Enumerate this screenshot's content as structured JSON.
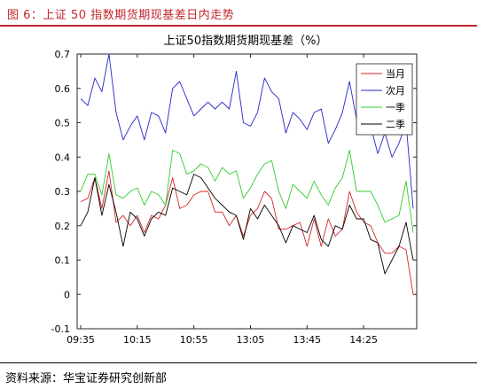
{
  "header": {
    "figure_title": "图 6：上证 50 指数期货期现基差日内走势"
  },
  "footer": {
    "source": "资料来源：华宝证券研究创新部"
  },
  "chart_data": {
    "type": "line",
    "title": "上证50指数期货期现基差（%）",
    "xlabel": "",
    "ylabel": "",
    "ylim": [
      -0.1,
      0.7
    ],
    "yticks": [
      -0.1,
      0,
      0.1,
      0.2,
      0.3,
      0.4,
      0.5,
      0.6,
      0.7
    ],
    "x_tick_labels": [
      "09:35",
      "10:15",
      "10:55",
      "13:05",
      "13:45",
      "14:25"
    ],
    "x_tick_index": [
      0,
      8,
      16,
      24,
      32,
      40
    ],
    "grid": false,
    "legend_position": "top-right",
    "series": [
      {
        "name": "当月",
        "color": "#d62728",
        "values": [
          0.27,
          0.28,
          0.34,
          0.25,
          0.36,
          0.21,
          0.23,
          0.2,
          0.23,
          0.18,
          0.23,
          0.22,
          0.26,
          0.34,
          0.25,
          0.26,
          0.29,
          0.3,
          0.3,
          0.24,
          0.24,
          0.2,
          0.23,
          0.17,
          0.23,
          0.25,
          0.3,
          0.28,
          0.19,
          0.19,
          0.2,
          0.21,
          0.14,
          0.22,
          0.14,
          0.22,
          0.17,
          0.19,
          0.3,
          0.24,
          0.21,
          0.2,
          0.15,
          0.12,
          0.12,
          0.14,
          0.13,
          0.0
        ]
      },
      {
        "name": "次月",
        "color": "#2424c8",
        "values": [
          0.57,
          0.55,
          0.63,
          0.59,
          0.7,
          0.53,
          0.45,
          0.49,
          0.52,
          0.45,
          0.53,
          0.52,
          0.47,
          0.6,
          0.62,
          0.57,
          0.52,
          0.54,
          0.56,
          0.54,
          0.56,
          0.54,
          0.65,
          0.5,
          0.49,
          0.53,
          0.63,
          0.59,
          0.57,
          0.47,
          0.53,
          0.51,
          0.48,
          0.53,
          0.54,
          0.44,
          0.48,
          0.53,
          0.62,
          0.51,
          0.56,
          0.49,
          0.41,
          0.47,
          0.4,
          0.44,
          0.5,
          0.25
        ]
      },
      {
        "name": "一季",
        "color": "#2ecc2e",
        "values": [
          0.3,
          0.35,
          0.35,
          0.29,
          0.41,
          0.29,
          0.28,
          0.3,
          0.31,
          0.26,
          0.3,
          0.29,
          0.26,
          0.42,
          0.41,
          0.35,
          0.36,
          0.38,
          0.37,
          0.33,
          0.37,
          0.35,
          0.36,
          0.28,
          0.31,
          0.35,
          0.38,
          0.39,
          0.3,
          0.25,
          0.32,
          0.3,
          0.28,
          0.33,
          0.29,
          0.26,
          0.31,
          0.34,
          0.42,
          0.3,
          0.3,
          0.3,
          0.26,
          0.21,
          0.22,
          0.23,
          0.33,
          0.18
        ]
      },
      {
        "name": "二季",
        "color": "#000000",
        "values": [
          0.2,
          0.24,
          0.34,
          0.23,
          0.32,
          0.24,
          0.14,
          0.24,
          0.22,
          0.17,
          0.22,
          0.24,
          0.23,
          0.31,
          0.3,
          0.29,
          0.35,
          0.34,
          0.31,
          0.28,
          0.26,
          0.24,
          0.23,
          0.16,
          0.25,
          0.22,
          0.26,
          0.23,
          0.2,
          0.15,
          0.2,
          0.19,
          0.18,
          0.23,
          0.16,
          0.14,
          0.2,
          0.19,
          0.26,
          0.22,
          0.22,
          0.16,
          0.15,
          0.06,
          0.1,
          0.14,
          0.21,
          0.1
        ]
      }
    ]
  }
}
